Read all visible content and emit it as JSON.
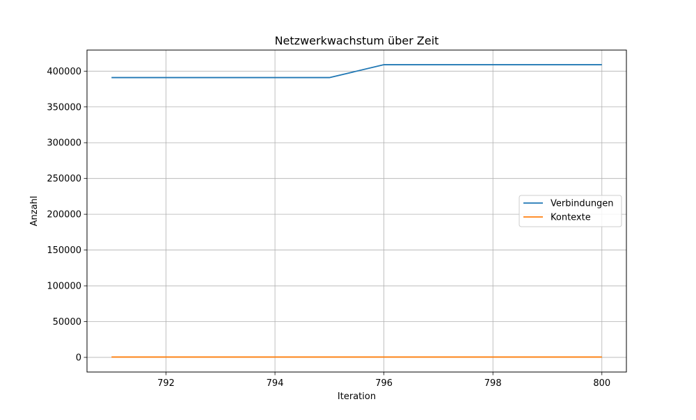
{
  "chart_data": {
    "type": "line",
    "title": "Netzwerkwachstum über Zeit",
    "xlabel": "Iteration",
    "ylabel": "Anzahl",
    "xlim": [
      790.55,
      800.45
    ],
    "ylim": [
      -20450,
      429450
    ],
    "x_ticks": [
      792,
      794,
      796,
      798,
      800
    ],
    "y_ticks": [
      0,
      50000,
      100000,
      150000,
      200000,
      250000,
      300000,
      350000,
      400000
    ],
    "grid": true,
    "legend_position": "center-right",
    "series": [
      {
        "name": "Verbindungen",
        "color": "#1f77b4",
        "x": [
          791,
          792,
          793,
          794,
          795,
          796,
          797,
          798,
          799,
          800
        ],
        "values": [
          391000,
          391000,
          391000,
          391000,
          391000,
          409000,
          409000,
          409000,
          409000,
          409000
        ]
      },
      {
        "name": "Kontexte",
        "color": "#ff7f0e",
        "x": [
          791,
          792,
          793,
          794,
          795,
          796,
          797,
          798,
          799,
          800
        ],
        "values": [
          500,
          500,
          500,
          500,
          500,
          500,
          500,
          500,
          500,
          500
        ]
      }
    ]
  }
}
